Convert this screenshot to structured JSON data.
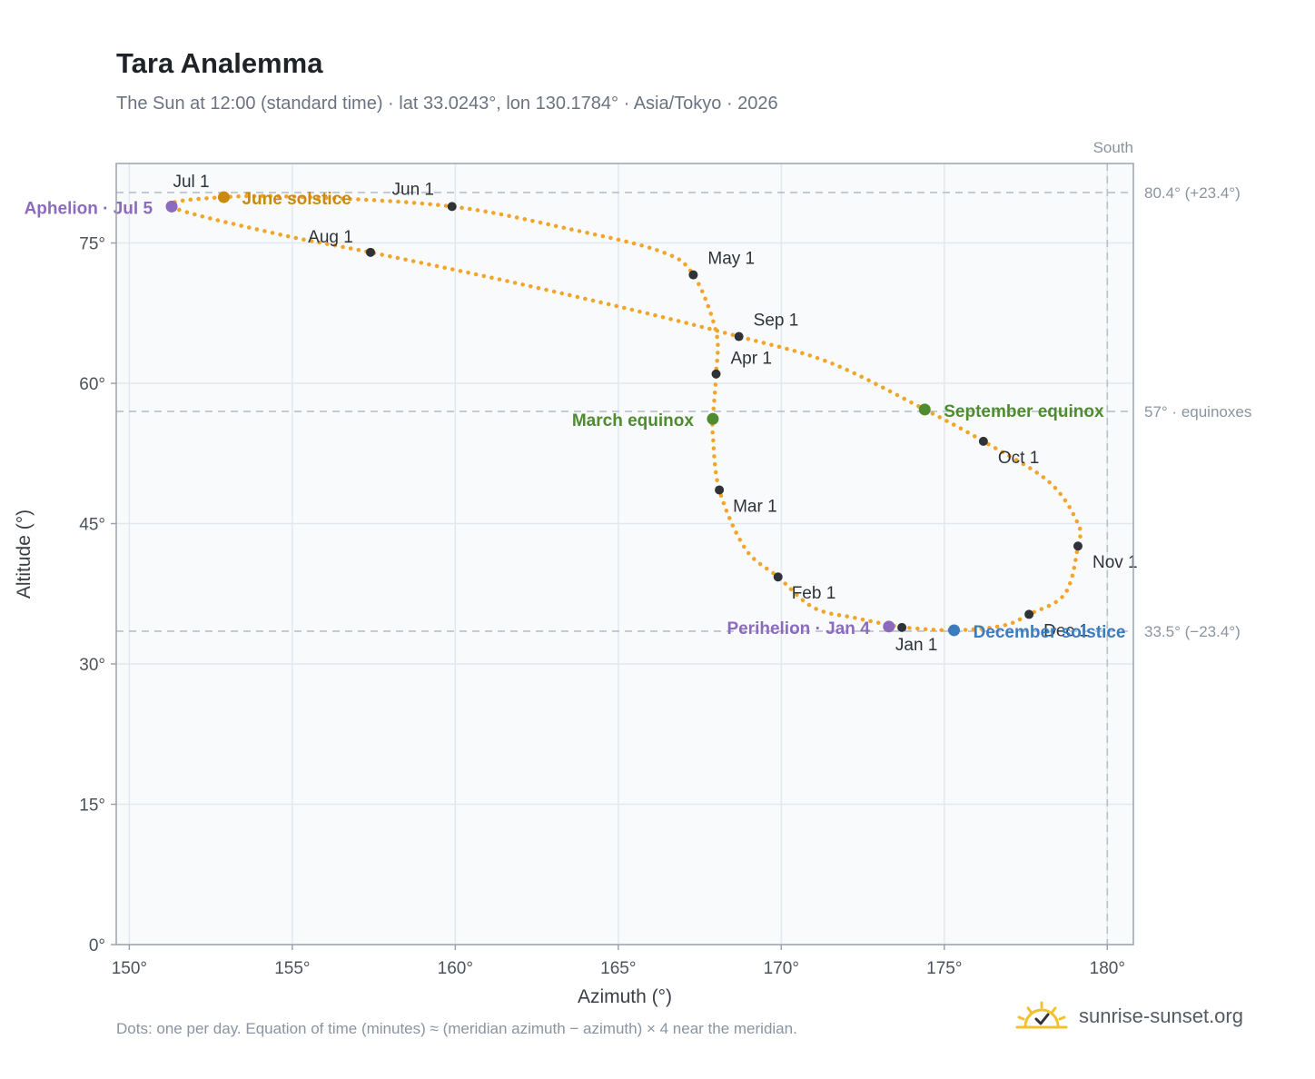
{
  "title": "Tara Analemma",
  "subtitle": "The Sun at 12:00 (standard time) · lat 33.0243°, lon 130.1784° · Asia/Tokyo · 2026",
  "footnote": "Dots: one per day. Equation of time (minutes) ≈ (meridian azimuth − azimuth) × 4 near the meridian.",
  "brand": {
    "name": "sunrise-sunset.org",
    "icon": "sun-check-icon"
  },
  "colors": {
    "curve": "#f2a52a",
    "month_marker": "#2f3338",
    "solstice_june": "#c98a0e",
    "solstice_december": "#3b7bbf",
    "equinox": "#4f8c2f",
    "apsis": "#8c6bbf",
    "reference_line": "#b8c0c8",
    "plot_bg": "#f8fafc",
    "grid": "#e3e8ee",
    "frame": "#9aa3ad"
  },
  "chart_data": {
    "type": "scatter",
    "xlabel": "Azimuth (°)",
    "ylabel": "Altitude (°)",
    "xlim": [
      149.6,
      180.8
    ],
    "ylim": [
      0,
      83.5
    ],
    "xticks": [
      150,
      155,
      160,
      165,
      170,
      175,
      180
    ],
    "xtick_labels": [
      "150°",
      "155°",
      "160°",
      "165°",
      "170°",
      "175°",
      "180°"
    ],
    "yticks": [
      0,
      15,
      30,
      45,
      60,
      75
    ],
    "ytick_labels": [
      "0°",
      "15°",
      "30°",
      "45°",
      "60°",
      "75°"
    ],
    "grid": true,
    "series": [
      {
        "points": [
          [
            173.7,
            33.9
          ],
          [
            172.3,
            34.9
          ],
          [
            171.0,
            36.0
          ],
          [
            169.9,
            39.3
          ],
          [
            168.9,
            42.3
          ],
          [
            168.1,
            48.6
          ],
          [
            167.9,
            54.5
          ],
          [
            167.9,
            56.2
          ],
          [
            168.0,
            61.0
          ],
          [
            168.0,
            65.5
          ],
          [
            167.3,
            71.6
          ],
          [
            166.3,
            74.1
          ],
          [
            163.5,
            76.5
          ],
          [
            159.9,
            78.9
          ],
          [
            155.5,
            79.9
          ],
          [
            152.9,
            79.9
          ],
          [
            151.3,
            78.9
          ],
          [
            154.5,
            76.0
          ],
          [
            157.4,
            74.0
          ],
          [
            161.5,
            71.0
          ],
          [
            165.5,
            67.8
          ],
          [
            168.7,
            65.0
          ],
          [
            171.5,
            62.2
          ],
          [
            174.4,
            57.2
          ],
          [
            176.2,
            53.8
          ],
          [
            178.2,
            49.5
          ],
          [
            179.1,
            45.0
          ],
          [
            179.1,
            42.6
          ],
          [
            178.7,
            37.5
          ],
          [
            177.6,
            35.3
          ],
          [
            176.8,
            34.1
          ],
          [
            175.3,
            33.6
          ],
          [
            173.7,
            33.9
          ]
        ]
      }
    ],
    "month_markers": [
      {
        "label": "Jan 1",
        "az": 173.7,
        "alt": 33.9
      },
      {
        "label": "Feb 1",
        "az": 169.9,
        "alt": 39.3
      },
      {
        "label": "Mar 1",
        "az": 168.1,
        "alt": 48.6
      },
      {
        "label": "Apr 1",
        "az": 168.0,
        "alt": 61.0
      },
      {
        "label": "May 1",
        "az": 167.3,
        "alt": 71.6
      },
      {
        "label": "Jun 1",
        "az": 159.9,
        "alt": 78.9
      },
      {
        "label": "Jul 1",
        "az": 151.9,
        "alt": 79.4
      },
      {
        "label": "Aug 1",
        "az": 157.4,
        "alt": 74.0
      },
      {
        "label": "Sep 1",
        "az": 168.7,
        "alt": 65.0
      },
      {
        "label": "Oct 1",
        "az": 176.2,
        "alt": 53.8
      },
      {
        "label": "Nov 1",
        "az": 179.1,
        "alt": 42.6
      },
      {
        "label": "Dec 1",
        "az": 177.6,
        "alt": 35.3
      }
    ],
    "events": [
      {
        "label": "June solstice",
        "az": 152.9,
        "alt": 79.9,
        "kind": "solstice_june"
      },
      {
        "label": "December solstice",
        "az": 175.3,
        "alt": 33.6,
        "kind": "solstice_december"
      },
      {
        "label": "March equinox",
        "az": 167.9,
        "alt": 56.2,
        "kind": "equinox"
      },
      {
        "label": "September equinox",
        "az": 174.4,
        "alt": 57.2,
        "kind": "equinox"
      },
      {
        "label": "Aphelion · Jul 5",
        "az": 151.3,
        "alt": 78.9,
        "kind": "apsis"
      },
      {
        "label": "Perihelion · Jan 4",
        "az": 173.3,
        "alt": 34.0,
        "kind": "apsis"
      }
    ],
    "reference_lines": [
      {
        "axis": "y",
        "value": 80.4,
        "label": "80.4° (+23.4°)"
      },
      {
        "axis": "y",
        "value": 57.0,
        "label": "57° · equinoxes"
      },
      {
        "axis": "y",
        "value": 33.5,
        "label": "33.5° (−23.4°)"
      },
      {
        "axis": "x",
        "value": 180.0,
        "label": "South"
      }
    ]
  }
}
